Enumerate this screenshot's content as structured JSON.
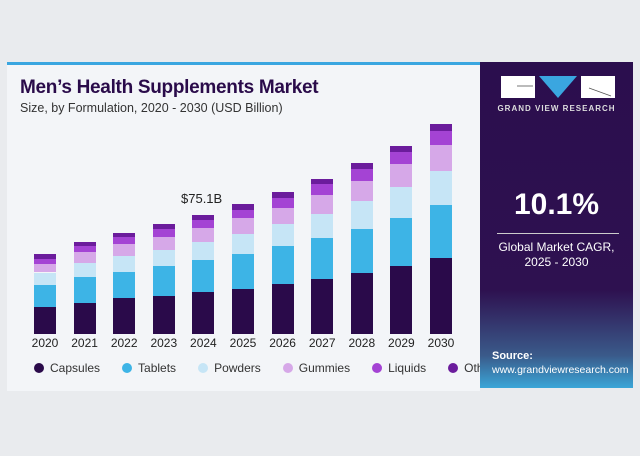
{
  "panel": {
    "brand": "GRAND VIEW RESEARCH",
    "cagr_value": "10.1%",
    "cagr_label_line1": "Global Market CAGR,",
    "cagr_label_line2": "2025 - 2030",
    "source_label": "Source:",
    "source_url": "www.grandviewresearch.com"
  },
  "chart_data": {
    "type": "bar",
    "stacked": true,
    "title": "Men’s Health Supplements Market",
    "subtitle": "Size, by Formulation, 2020 - 2030 (USD Billion)",
    "annotation": {
      "category": "2024",
      "text": "$75.1B"
    },
    "xlabel": "",
    "ylabel": "USD Billion",
    "legend_position": "bottom",
    "grid": false,
    "categories": [
      "2020",
      "2021",
      "2022",
      "2023",
      "2024",
      "2025",
      "2026",
      "2027",
      "2028",
      "2029",
      "2030"
    ],
    "series": [
      {
        "name": "Capsules",
        "color": "#2a0a4a",
        "values": [
          17.3,
          19.8,
          22.4,
          24.1,
          26.6,
          28.7,
          31.7,
          35.0,
          38.4,
          43.0,
          47.7
        ]
      },
      {
        "name": "Tablets",
        "color": "#3db4e6",
        "values": [
          13.9,
          16.0,
          16.9,
          18.6,
          19.8,
          21.9,
          23.6,
          25.7,
          27.9,
          30.0,
          33.8
        ]
      },
      {
        "name": "Powders",
        "color": "#c6e5f6",
        "values": [
          7.6,
          8.9,
          10.1,
          10.6,
          11.8,
          12.7,
          13.9,
          15.2,
          17.3,
          19.8,
          21.5
        ]
      },
      {
        "name": "Gummies",
        "color": "#d6a8e8",
        "values": [
          5.5,
          6.8,
          7.2,
          8.0,
          8.4,
          9.7,
          10.6,
          11.8,
          13.1,
          14.3,
          16.5
        ]
      },
      {
        "name": "Liquids",
        "color": "#a443d4",
        "values": [
          3.2,
          3.8,
          4.6,
          5.1,
          5.5,
          5.5,
          5.9,
          6.8,
          7.2,
          7.6,
          8.4
        ]
      },
      {
        "name": "Others",
        "color": "#6b1c9c",
        "values": [
          2.7,
          3.0,
          2.5,
          3.0,
          3.0,
          3.4,
          3.8,
          3.4,
          3.8,
          4.2,
          4.6
        ]
      }
    ]
  }
}
